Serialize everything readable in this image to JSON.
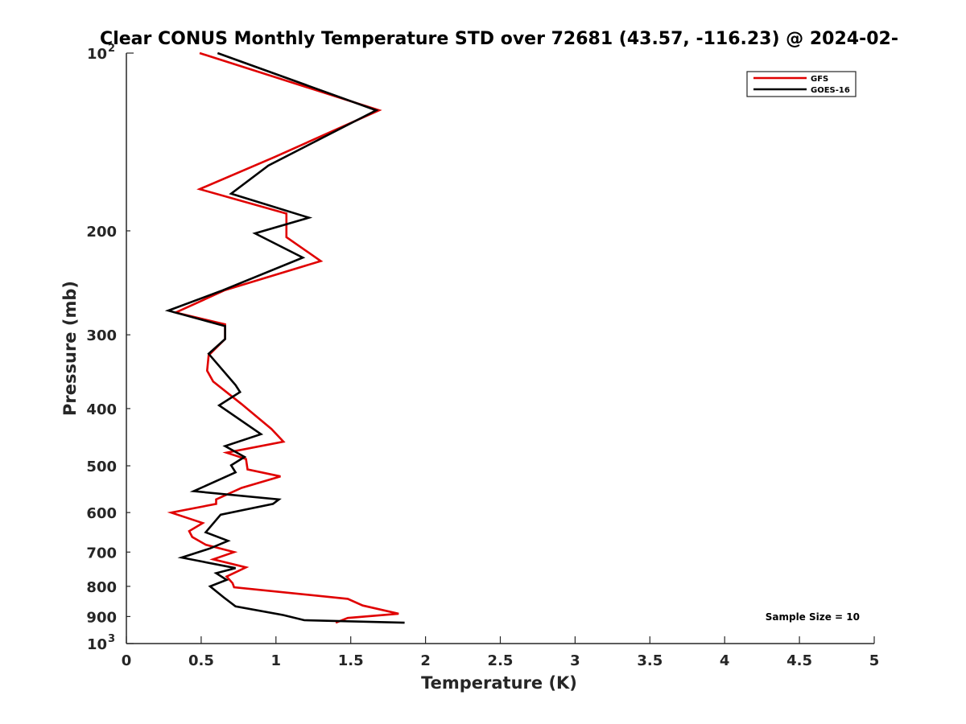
{
  "chart_data": {
    "type": "line",
    "title": "Clear CONUS Monthly Temperature STD over 72681 (43.57, -116.23) @ 2024-02-",
    "xlabel": "Temperature (K)",
    "ylabel": "Pressure (mb)",
    "xlim": [
      0,
      5
    ],
    "ylim": [
      100,
      1000
    ],
    "yscale": "log",
    "y_reversed": true,
    "x_ticks": [
      {
        "value": 0,
        "label": "0"
      },
      {
        "value": 0.5,
        "label": "0.5"
      },
      {
        "value": 1,
        "label": "1"
      },
      {
        "value": 1.5,
        "label": "1.5"
      },
      {
        "value": 2,
        "label": "2"
      },
      {
        "value": 2.5,
        "label": "2.5"
      },
      {
        "value": 3,
        "label": "3"
      },
      {
        "value": 3.5,
        "label": "3.5"
      },
      {
        "value": 4,
        "label": "4"
      },
      {
        "value": 4.5,
        "label": "4.5"
      },
      {
        "value": 5,
        "label": "5"
      }
    ],
    "y_ticks": [
      {
        "value": 100,
        "label": "10",
        "sup": "2"
      },
      {
        "value": 200,
        "label": "200"
      },
      {
        "value": 300,
        "label": "300"
      },
      {
        "value": 400,
        "label": "400"
      },
      {
        "value": 500,
        "label": "500"
      },
      {
        "value": 600,
        "label": "600"
      },
      {
        "value": 700,
        "label": "700"
      },
      {
        "value": 800,
        "label": "800"
      },
      {
        "value": 900,
        "label": "900"
      },
      {
        "value": 1000,
        "label": "10",
        "sup": "3"
      }
    ],
    "legend_position": "top-right",
    "annotation": "Sample Size = 10",
    "series": [
      {
        "name": "GFS",
        "color": "#e00000",
        "points": [
          [
            0.49,
            100
          ],
          [
            1.69,
            125
          ],
          [
            0.99,
            150
          ],
          [
            0.49,
            170
          ],
          [
            1.07,
            187
          ],
          [
            1.07,
            205
          ],
          [
            1.3,
            225
          ],
          [
            0.66,
            252
          ],
          [
            0.33,
            275
          ],
          [
            0.66,
            288
          ],
          [
            0.66,
            305
          ],
          [
            0.55,
            325
          ],
          [
            0.54,
            345
          ],
          [
            0.58,
            360
          ],
          [
            0.77,
            393
          ],
          [
            0.97,
            433
          ],
          [
            1.05,
            455
          ],
          [
            0.67,
            475
          ],
          [
            0.8,
            487
          ],
          [
            0.81,
            507
          ],
          [
            1.03,
            521
          ],
          [
            0.77,
            545
          ],
          [
            0.6,
            570
          ],
          [
            0.6,
            580
          ],
          [
            0.3,
            600
          ],
          [
            0.51,
            625
          ],
          [
            0.42,
            645
          ],
          [
            0.44,
            660
          ],
          [
            0.53,
            680
          ],
          [
            0.72,
            700
          ],
          [
            0.58,
            720
          ],
          [
            0.8,
            743
          ],
          [
            0.67,
            770
          ],
          [
            0.71,
            790
          ],
          [
            0.72,
            803
          ],
          [
            1.48,
            840
          ],
          [
            1.58,
            862
          ],
          [
            1.82,
            890
          ],
          [
            1.48,
            905
          ],
          [
            1.4,
            922
          ]
        ]
      },
      {
        "name": "GOES-16",
        "color": "#000000",
        "points": [
          [
            0.61,
            100
          ],
          [
            1.67,
            125
          ],
          [
            0.95,
            155
          ],
          [
            0.7,
            173
          ],
          [
            1.22,
            190
          ],
          [
            0.86,
            202
          ],
          [
            1.18,
            222
          ],
          [
            0.63,
            253
          ],
          [
            0.28,
            273
          ],
          [
            0.66,
            290
          ],
          [
            0.66,
            305
          ],
          [
            0.55,
            323
          ],
          [
            0.73,
            365
          ],
          [
            0.76,
            375
          ],
          [
            0.62,
            395
          ],
          [
            0.9,
            442
          ],
          [
            0.66,
            463
          ],
          [
            0.79,
            483
          ],
          [
            0.7,
            499
          ],
          [
            0.73,
            513
          ],
          [
            0.45,
            552
          ],
          [
            1.02,
            570
          ],
          [
            0.98,
            580
          ],
          [
            0.63,
            605
          ],
          [
            0.53,
            648
          ],
          [
            0.68,
            670
          ],
          [
            0.56,
            690
          ],
          [
            0.37,
            715
          ],
          [
            0.73,
            745
          ],
          [
            0.6,
            760
          ],
          [
            0.67,
            780
          ],
          [
            0.56,
            800
          ],
          [
            0.65,
            835
          ],
          [
            0.73,
            865
          ],
          [
            1.05,
            895
          ],
          [
            1.19,
            913
          ],
          [
            1.86,
            922
          ]
        ]
      }
    ]
  }
}
